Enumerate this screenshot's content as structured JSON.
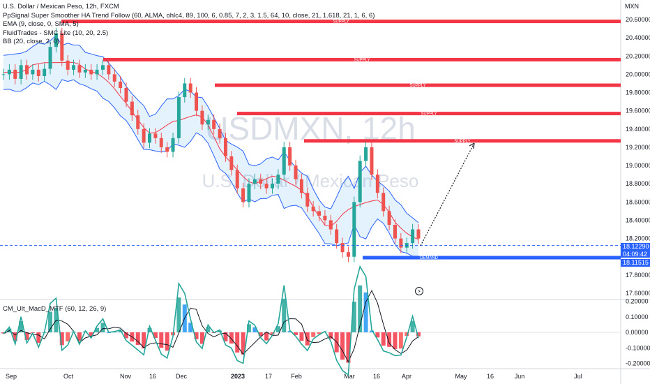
{
  "symbol_line": "U.S. Dollar / Mexican Peso, 12h, FXCM",
  "indicators": [
    "PpSignal Super Smoother HA Trend Follow (60, ALMA, ohlc4, 89, 100, 6, 0.85, 7, 2, 3, 1.5, 64, 10, close, 21, 1.618, 21, 1, 6, 6)",
    "EMA (9, close, 0, SMA, 5)",
    "FluidTrades - SMC Lite (10, 20, 2.5)",
    "BB (20, close, 2, 0)"
  ],
  "watermark": {
    "ticker": "USDMXN, 12h",
    "name": "U.S. Dollar / Mexican Peso"
  },
  "macd_label": "CM_Ult_MacD_MTF (60, 12, 26, 9)",
  "price_axis": {
    "unit": "MXN",
    "ticks": [
      "20.60000",
      "20.40000",
      "20.20000",
      "20.00000",
      "19.80000",
      "19.60000",
      "19.40000",
      "19.20000",
      "19.00000",
      "18.80000",
      "18.60000",
      "18.40000",
      "18.20000",
      "17.80000",
      "17.60000"
    ],
    "tick_values": [
      20.6,
      20.4,
      20.2,
      20.0,
      19.8,
      19.6,
      19.4,
      19.2,
      19.0,
      18.8,
      18.6,
      18.4,
      18.2,
      17.8,
      17.6
    ]
  },
  "macd_axis": {
    "ticks": [
      "0.20000",
      "0.10000",
      "0.00000",
      "-0.10000",
      "-0.20000"
    ],
    "tick_values": [
      0.2,
      0.1,
      0.0,
      -0.1,
      -0.2
    ]
  },
  "time_axis": [
    "Sep",
    "Oct",
    "Nov",
    "16",
    "Dec",
    "2023",
    "17",
    "Feb",
    "Mar",
    "16",
    "Apr",
    "May",
    "16",
    "Jun",
    "Jul"
  ],
  "current_price": {
    "value": "18.12290",
    "countdown": "04:09:42",
    "color": "#2962ff"
  },
  "demand_price": {
    "value": "18.11515",
    "color": "#2962ff"
  },
  "zones": [
    {
      "type": "supply",
      "label": "SUPPLY",
      "price": 20.58,
      "color": "#f23645"
    },
    {
      "type": "supply",
      "label": "SUPPLY",
      "price": 20.16,
      "color": "#f23645"
    },
    {
      "type": "supply",
      "label": "SUPPLY",
      "price": 19.88,
      "color": "#f23645"
    },
    {
      "type": "supply",
      "label": "SUPPLY",
      "price": 19.57,
      "color": "#f23645"
    },
    {
      "type": "supply",
      "label": "SUPPLY",
      "price": 19.27,
      "color": "#f23645"
    },
    {
      "type": "demand",
      "label": "DEMAND",
      "price": 17.99,
      "color": "#2962ff"
    }
  ],
  "chart_data": {
    "type": "line",
    "title": "U.S. Dollar / Mexican Peso, 12h, FXCM",
    "ylim": [
      17.5,
      20.75
    ],
    "series": [
      {
        "name": "",
        "values": [
          20.0,
          20.05,
          19.95,
          20.1,
          20.0,
          20.05,
          19.98,
          20.06,
          20.3,
          20.45,
          20.15,
          20.05,
          20.1,
          20.02,
          20.05,
          20.0,
          20.05,
          20.1,
          20.0,
          19.92,
          19.85,
          19.7,
          19.55,
          19.4,
          19.25,
          19.35,
          19.3,
          19.2,
          19.15,
          19.3,
          19.75,
          19.9,
          19.8,
          19.6,
          19.45,
          19.5,
          19.4,
          19.3,
          19.1,
          18.95,
          18.75,
          18.6,
          18.8,
          18.85,
          18.8,
          18.75,
          18.8,
          18.9,
          19.2,
          19.0,
          18.85,
          18.7,
          18.55,
          18.5,
          18.45,
          18.4,
          18.3,
          18.15,
          18.05,
          18.0,
          18.6,
          19.05,
          19.2,
          18.9,
          18.7,
          18.5,
          18.35,
          18.2,
          18.1,
          18.15,
          18.3,
          18.2
        ]
      }
    ]
  }
}
